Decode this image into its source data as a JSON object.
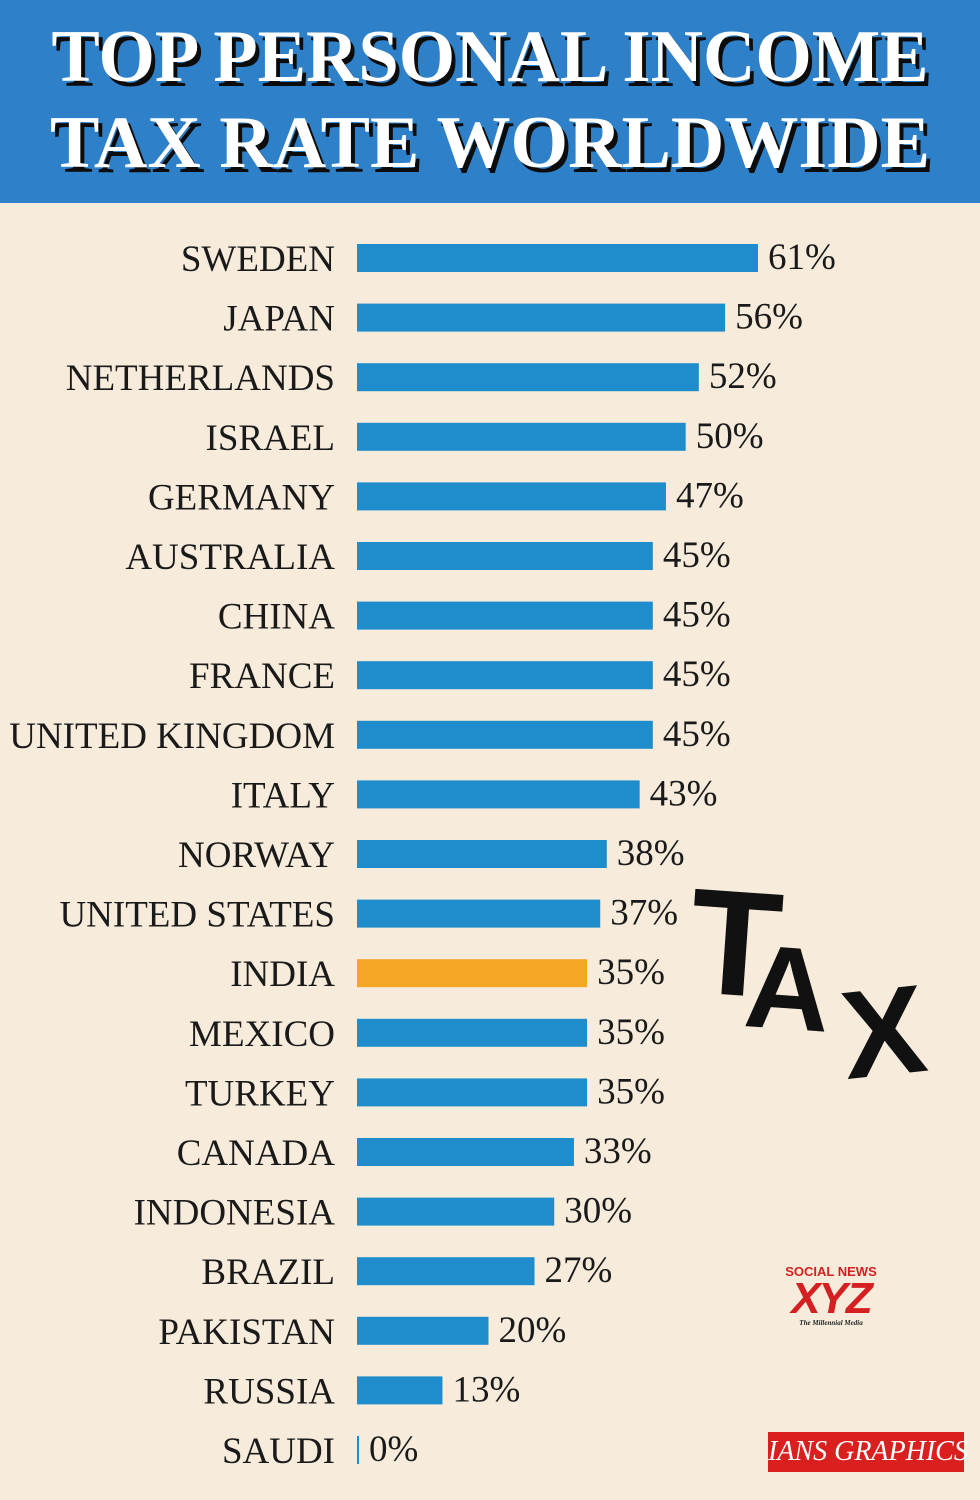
{
  "header": {
    "title_line1": "TOP PERSONAL INCOME",
    "title_line2": "TAX RATE WORLDWIDE"
  },
  "colors": {
    "header_bg": "#2e80c8",
    "bar": "#1f8ccb",
    "bar_highlight": "#f5a623",
    "background": "#f7ecdc"
  },
  "chart_data": {
    "type": "bar",
    "orientation": "horizontal",
    "title": "TOP PERSONAL INCOME TAX RATE WORLDWIDE",
    "categories": [
      "SWEDEN",
      "JAPAN",
      "NETHERLANDS",
      "ISRAEL",
      "GERMANY",
      "AUSTRALIA",
      "CHINA",
      "FRANCE",
      "UNITED KINGDOM",
      "ITALY",
      "NORWAY",
      "UNITED STATES",
      "INDIA",
      "MEXICO",
      "TURKEY",
      "CANADA",
      "INDONESIA",
      "BRAZIL",
      "PAKISTAN",
      "RUSSIA",
      "SAUDI"
    ],
    "values": [
      61,
      56,
      52,
      50,
      47,
      45,
      45,
      45,
      45,
      43,
      38,
      37,
      35,
      35,
      35,
      33,
      30,
      27,
      20,
      13,
      0
    ],
    "value_labels": [
      "61%",
      "56%",
      "52%",
      "50%",
      "47%",
      "45%",
      "45%",
      "45%",
      "45%",
      "43%",
      "38%",
      "37%",
      "35%",
      "35%",
      "35%",
      "33%",
      "30%",
      "27%",
      "20%",
      "13%",
      "0%"
    ],
    "highlight": "INDIA",
    "unit": "%",
    "xlim": [
      0,
      61
    ]
  },
  "decoration": {
    "tax_letters": [
      "T",
      "A",
      "X"
    ]
  },
  "watermark": {
    "top": "SOCIAL NEWS",
    "main": "XYZ",
    "sub": "The Millennial Media"
  },
  "credit": "IANS GRAPHICS"
}
